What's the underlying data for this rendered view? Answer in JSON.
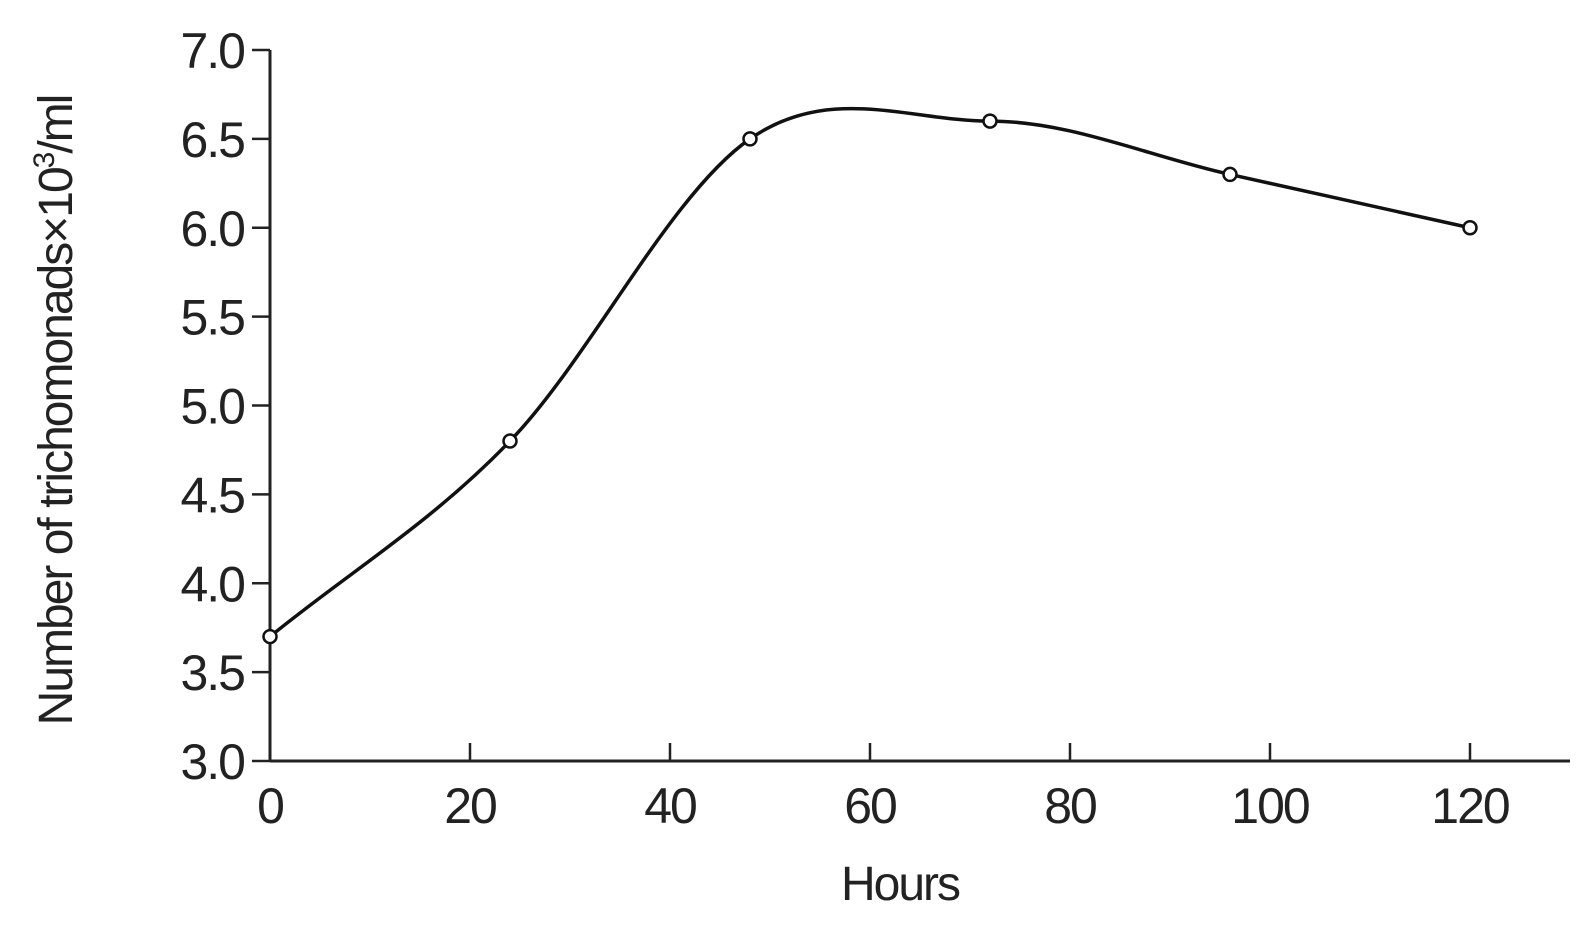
{
  "chart_data": {
    "type": "line",
    "title": "",
    "xlabel": "Hours",
    "ylabel_main": "Number of trichomonads×10",
    "ylabel_sup": "3",
    "ylabel_tail": "/ml",
    "xlim": [
      0,
      130
    ],
    "ylim": [
      3.0,
      7.0
    ],
    "x_ticks": [
      0,
      20,
      40,
      60,
      80,
      100,
      120
    ],
    "x_tick_labels": [
      "0",
      "20",
      "40",
      "60",
      "80",
      "100",
      "120"
    ],
    "y_ticks": [
      3.0,
      3.5,
      4.0,
      4.5,
      5.0,
      5.5,
      6.0,
      6.5,
      7.0
    ],
    "y_tick_labels": [
      "3.0",
      "3.5",
      "4.0",
      "4.5",
      "5.0",
      "5.5",
      "6.0",
      "6.5",
      "7.0"
    ],
    "grid": false,
    "legend": "none",
    "series": [
      {
        "x": [
          0,
          24,
          48,
          72,
          96,
          120
        ],
        "y": [
          3.7,
          4.8,
          6.5,
          6.6,
          6.3,
          6.0
        ],
        "marker": "open-circle",
        "smooth": true
      }
    ]
  },
  "colors": {
    "line": "#111111",
    "axis": "#222222",
    "text": "#222222",
    "background": "#ffffff"
  }
}
